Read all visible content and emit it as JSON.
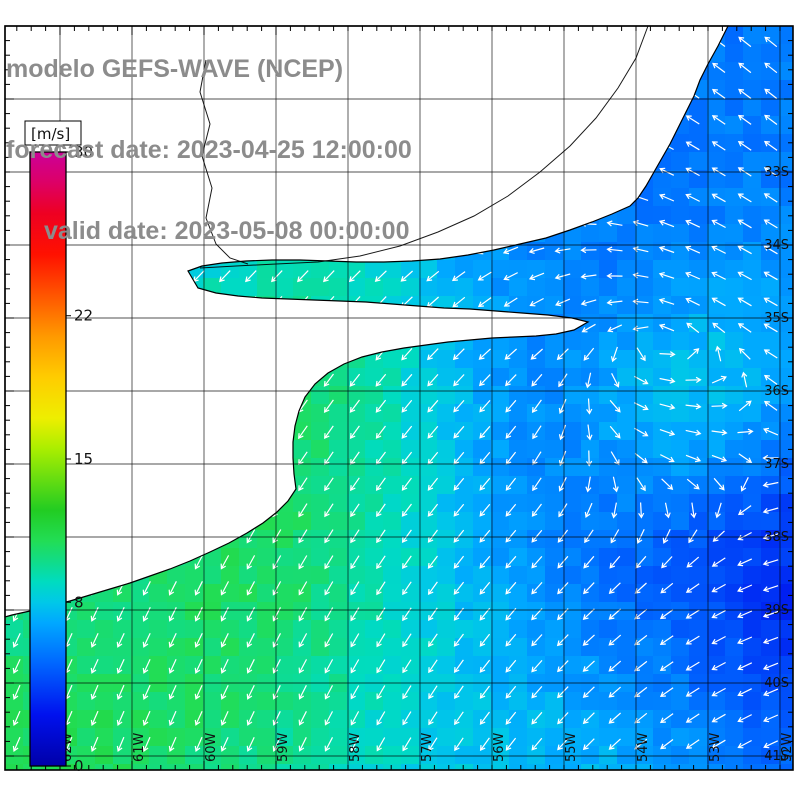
{
  "header": {
    "line1": "modelo GEFS-WAVE (NCEP)",
    "line2": "forecast date: 2023-04-25 12:00:00",
    "line3": "valid date: 2023-05-08 00:00:00",
    "text_color": "#8c8c8c"
  },
  "colorbar": {
    "unit_label": "[m/s]",
    "min": 0,
    "max": 30,
    "tick_labels": [
      "30",
      "22",
      "15",
      "8",
      "0"
    ],
    "tick_values": [
      30,
      22,
      15,
      8,
      0
    ],
    "gradient_stops": [
      {
        "value": 0,
        "color": "#0000a8"
      },
      {
        "value": 2.5,
        "color": "#0011ee"
      },
      {
        "value": 5,
        "color": "#0066ff"
      },
      {
        "value": 7,
        "color": "#00a8ff"
      },
      {
        "value": 8,
        "color": "#00c8e8"
      },
      {
        "value": 9,
        "color": "#00dcc0"
      },
      {
        "value": 10,
        "color": "#11dc88"
      },
      {
        "value": 11,
        "color": "#22dd55"
      },
      {
        "value": 12.5,
        "color": "#22cc22"
      },
      {
        "value": 14,
        "color": "#66dd11"
      },
      {
        "value": 15.5,
        "color": "#aaee00"
      },
      {
        "value": 17,
        "color": "#eeee00"
      },
      {
        "value": 19,
        "color": "#ffcc00"
      },
      {
        "value": 21,
        "color": "#ff9900"
      },
      {
        "value": 23,
        "color": "#ff5500"
      },
      {
        "value": 25,
        "color": "#ff1100"
      },
      {
        "value": 27,
        "color": "#ee0022"
      },
      {
        "value": 28.5,
        "color": "#dd0066"
      },
      {
        "value": 30,
        "color": "#cc0099"
      }
    ]
  },
  "axes": {
    "lat_labels": [
      "33S",
      "34S",
      "35S",
      "36S",
      "37S",
      "38S",
      "39S",
      "40S",
      "41S"
    ],
    "lon_labels": [
      "62W",
      "61W",
      "60W",
      "59W",
      "58W",
      "57W",
      "56W",
      "55W",
      "54W",
      "53W",
      "52W"
    ]
  },
  "map": {
    "land_color": "#ffffff",
    "ocean_arrow_color": "#ffffff",
    "coastline_color": "#000000",
    "grid_color": "#000000"
  }
}
